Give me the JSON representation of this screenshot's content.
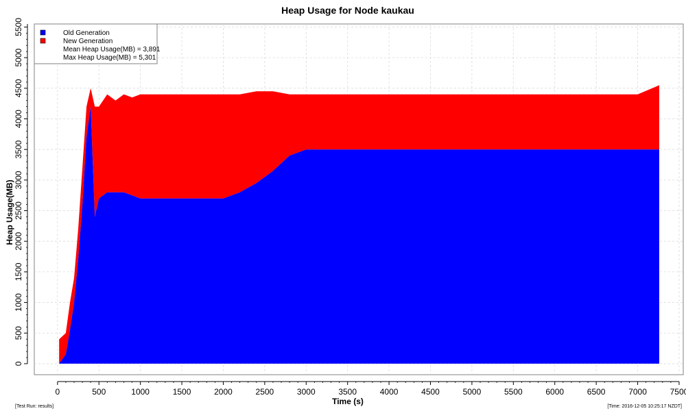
{
  "chart_data": {
    "type": "area",
    "title": "Heap Usage for Node kaukau",
    "xlabel": "Time (s)",
    "ylabel": "Heap Usage(MB)",
    "xlim": [
      -280,
      7550
    ],
    "ylim": [
      -180,
      5550
    ],
    "x_ticks": [
      0,
      500,
      1000,
      1500,
      2000,
      2500,
      3000,
      3500,
      4000,
      4500,
      5000,
      5500,
      6000,
      6500,
      7000,
      7500
    ],
    "y_ticks": [
      0,
      500,
      1000,
      1500,
      2000,
      2500,
      3000,
      3500,
      4000,
      4500,
      5000,
      5500
    ],
    "stacked": true,
    "grid": true,
    "legend_position": "top-left",
    "series": [
      {
        "name": "Old Generation",
        "color": "#0000ff",
        "x": [
          20,
          100,
          150,
          200,
          250,
          300,
          350,
          400,
          450,
          500,
          600,
          700,
          800,
          900,
          1000,
          1200,
          1500,
          1800,
          2000,
          2200,
          2400,
          2600,
          2800,
          3000,
          3500,
          4000,
          4500,
          5000,
          5500,
          6000,
          6500,
          7000,
          7260
        ],
        "values": [
          0,
          150,
          550,
          1000,
          1700,
          2600,
          3700,
          4200,
          2400,
          2700,
          2800,
          2800,
          2800,
          2750,
          2700,
          2700,
          2700,
          2700,
          2700,
          2800,
          2950,
          3150,
          3400,
          3500,
          3500,
          3500,
          3500,
          3500,
          3500,
          3500,
          3500,
          3500,
          3500
        ]
      },
      {
        "name": "New Generation",
        "color": "#ff0000",
        "x": [
          20,
          100,
          150,
          200,
          250,
          300,
          350,
          400,
          450,
          500,
          600,
          700,
          800,
          900,
          1000,
          1200,
          1500,
          1800,
          2000,
          2200,
          2400,
          2600,
          2800,
          3000,
          3500,
          4000,
          4500,
          5000,
          5500,
          6000,
          6500,
          7000,
          7260
        ],
        "values": [
          400,
          350,
          450,
          400,
          500,
          600,
          500,
          300,
          1800,
          1500,
          1600,
          1500,
          1600,
          1600,
          1700,
          1700,
          1700,
          1700,
          1700,
          1600,
          1500,
          1300,
          1000,
          900,
          900,
          900,
          900,
          900,
          900,
          900,
          900,
          900,
          1050
        ]
      }
    ],
    "annotations": [
      "Mean Heap Usage(MB) = 3,891",
      "Max Heap Usage(MB) = 5,301"
    ]
  },
  "footer": {
    "left": "[Test Run: results]",
    "right": "[Time: 2016-12-05 10:25:17 NZDT]"
  }
}
